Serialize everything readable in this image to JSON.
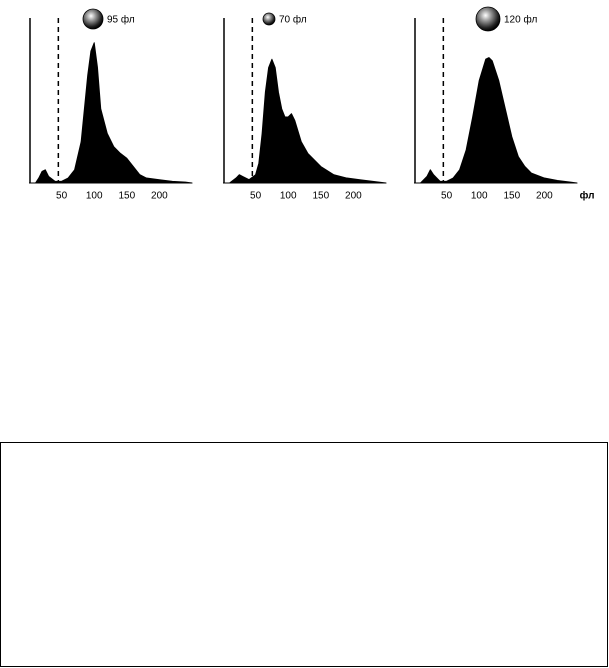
{
  "chart_data": [
    {
      "type": "area",
      "title": "95 фл",
      "color": "#000000",
      "x": [
        10,
        15,
        20,
        25,
        30,
        40,
        50,
        60,
        70,
        80,
        90,
        95,
        100,
        105,
        110,
        120,
        130,
        140,
        150,
        160,
        170,
        180,
        200,
        220,
        240,
        250
      ],
      "values": [
        0,
        3,
        7,
        8,
        4,
        1,
        1,
        3,
        8,
        25,
        65,
        80,
        85,
        70,
        45,
        30,
        22,
        18,
        15,
        10,
        5,
        3,
        2,
        1,
        0.5,
        0
      ],
      "xlim": [
        0,
        250
      ],
      "ylim": [
        0,
        100
      ],
      "xticks": [
        50,
        100,
        150,
        200
      ],
      "threshold": 45
    },
    {
      "type": "area",
      "title": "70 фл",
      "color": "#000000",
      "x": [
        10,
        20,
        25,
        30,
        40,
        50,
        55,
        60,
        65,
        70,
        75,
        80,
        85,
        90,
        95,
        100,
        105,
        110,
        120,
        130,
        150,
        170,
        190,
        210,
        230,
        250
      ],
      "values": [
        0,
        3,
        5,
        4,
        2,
        5,
        12,
        30,
        55,
        70,
        75,
        70,
        55,
        45,
        40,
        40,
        42,
        38,
        25,
        18,
        10,
        5,
        3,
        2,
        1,
        0
      ],
      "xlim": [
        0,
        250
      ],
      "ylim": [
        0,
        100
      ],
      "xticks": [
        50,
        100,
        150,
        200
      ],
      "threshold": 45
    },
    {
      "type": "area",
      "title": "120 фл",
      "color": "#000000",
      "xlabel": "фл",
      "x": [
        10,
        20,
        25,
        30,
        40,
        50,
        60,
        70,
        80,
        90,
        100,
        110,
        115,
        120,
        130,
        140,
        150,
        160,
        170,
        180,
        200,
        220,
        240,
        250
      ],
      "values": [
        0,
        4,
        8,
        5,
        1,
        1,
        3,
        8,
        20,
        40,
        62,
        75,
        76,
        74,
        62,
        45,
        28,
        16,
        10,
        6,
        3,
        1.5,
        0.5,
        0
      ],
      "xlim": [
        0,
        250
      ],
      "ylim": [
        0,
        100
      ],
      "xticks": [
        50,
        100,
        150,
        200
      ],
      "threshold": 45
    }
  ]
}
